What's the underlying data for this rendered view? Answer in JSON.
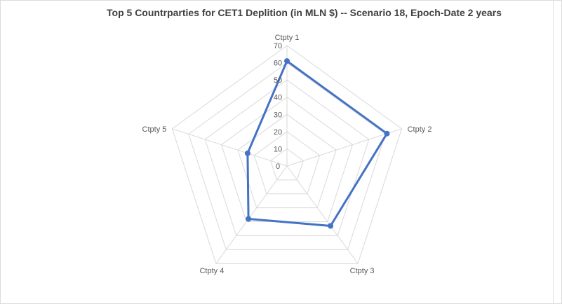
{
  "chart_data": {
    "type": "radar",
    "title": "Top 5 Countrparties for CET1 Deplition (in MLN $) -- Scenario 18,  Epoch-Date 2 years",
    "categories": [
      "Ctpty 1",
      "Ctpty 2",
      "Ctpty 3",
      "Ctpty 4",
      "Ctpty 5"
    ],
    "series": [
      {
        "values": [
          61,
          61,
          43,
          38,
          24
        ]
      }
    ],
    "rlim": [
      0,
      70
    ],
    "ticks": [
      0,
      10,
      20,
      30,
      40,
      50,
      60,
      70
    ],
    "grid": true,
    "legend": "none",
    "series_color": "#4472c4",
    "grid_color": "#d9d9d9"
  }
}
